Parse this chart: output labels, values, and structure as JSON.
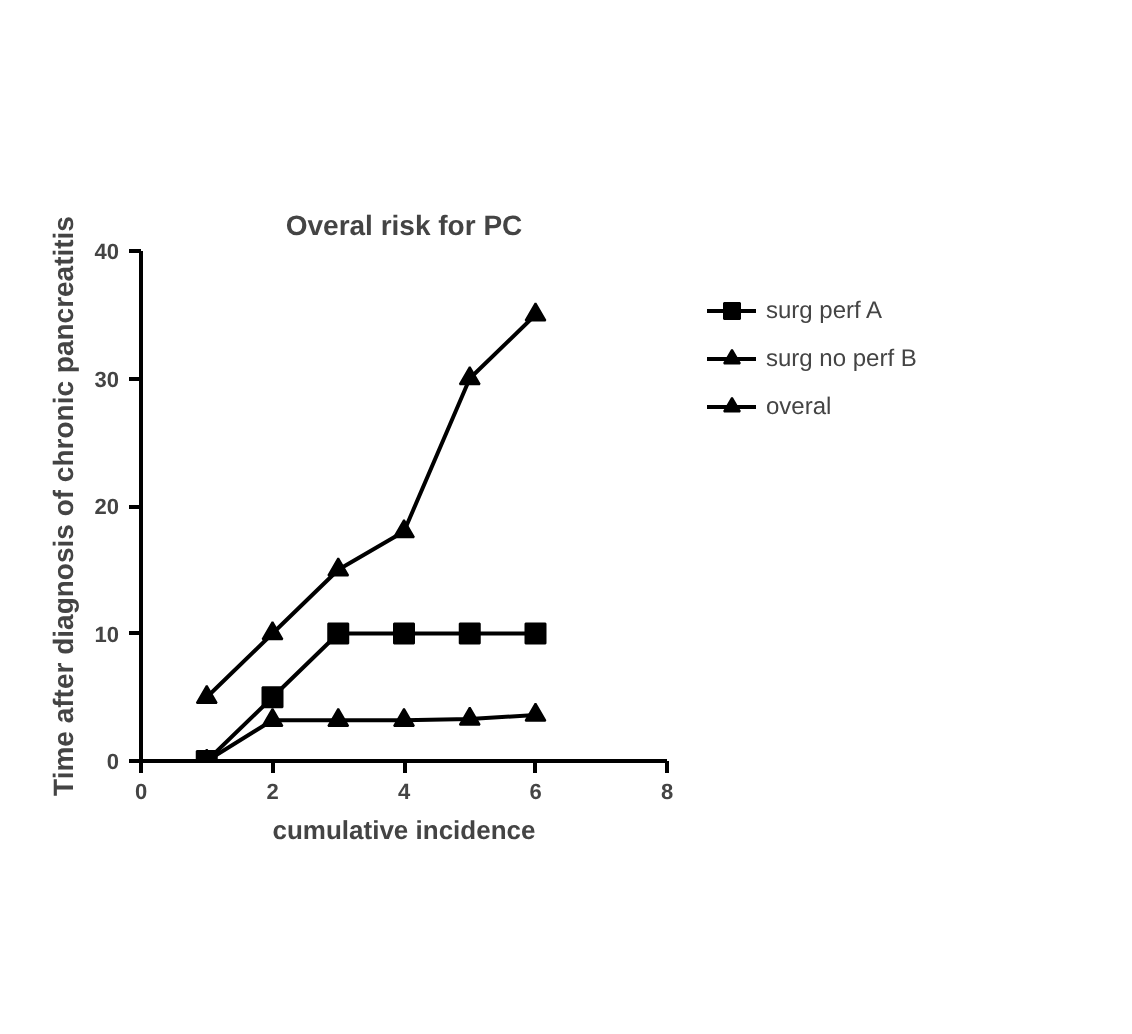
{
  "chart_data": {
    "type": "line",
    "title": "Overal risk for PC",
    "xlabel": "cumulative incidence",
    "ylabel": "Time after diagnosis of chronic pancreatitis",
    "xlim": [
      0,
      8
    ],
    "ylim": [
      0,
      40
    ],
    "xticks": [
      0,
      2,
      4,
      6,
      8
    ],
    "yticks": [
      0,
      10,
      20,
      30,
      40
    ],
    "grid": false,
    "legend": "right",
    "x": [
      1,
      2,
      3,
      4,
      5,
      6
    ],
    "series": [
      {
        "name": "surg perf A",
        "color": "#000000",
        "marker": "square",
        "values": [
          0,
          5,
          10,
          10,
          10,
          10
        ]
      },
      {
        "name": "surg no perf B",
        "color": "#000000",
        "marker": "triangle",
        "values": [
          5,
          10,
          15,
          18,
          30,
          35
        ]
      },
      {
        "name": "overal",
        "color": "#000000",
        "marker": "triangle",
        "values": [
          0,
          3.2,
          3.2,
          3.2,
          3.3,
          3.6
        ]
      }
    ]
  }
}
